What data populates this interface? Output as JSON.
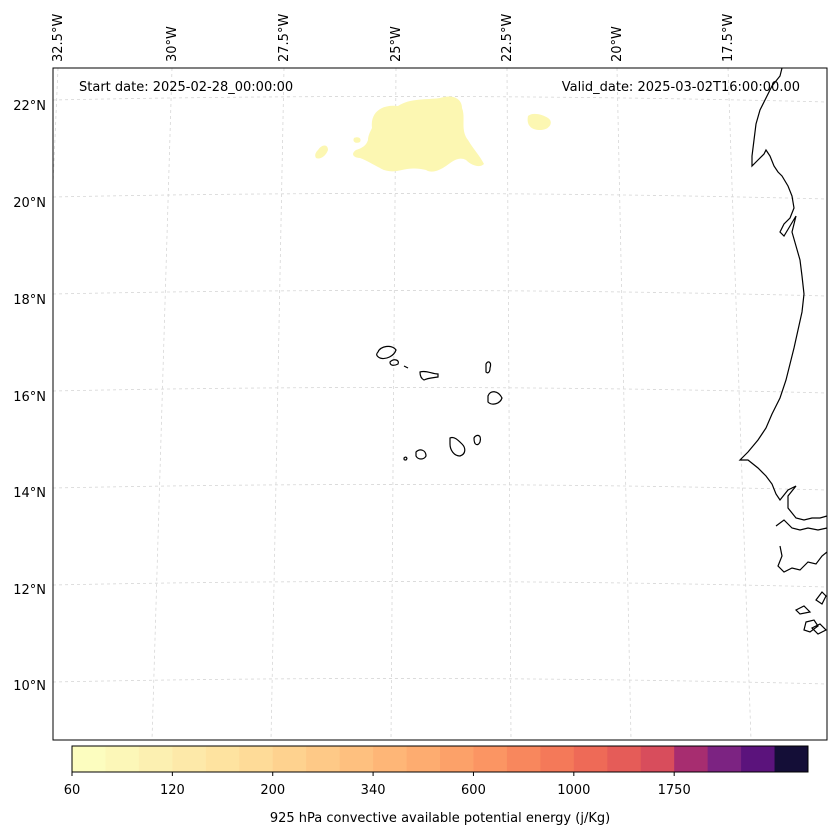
{
  "map": {
    "projection": "lambert-conformal",
    "annotations": {
      "start_date": "Start date: 2025-02-28_00:00:00",
      "valid_date": "Valid_date: 2025-03-02T16:00:00.00"
    },
    "longitude_labels": [
      "32.5°W",
      "30°W",
      "27.5°W",
      "25°W",
      "22.5°W",
      "20°W",
      "17.5°W"
    ],
    "latitude_labels": [
      "22°N",
      "20°N",
      "18°N",
      "16°N",
      "14°N",
      "12°N",
      "10°N"
    ],
    "gridlines": true,
    "coastlines": true,
    "features": [
      "Cape Verde Islands",
      "West African coast (Mauritania, Senegal, Gambia, Guinea-Bissau)"
    ],
    "field": {
      "name": "925 hPa convective available potential energy",
      "visible_region": "low CAPE patch (60–120 j/Kg) near 20.5°N–22°N, 24°W–21°W"
    }
  },
  "colorbar": {
    "label": "925 hPa convective available potential energy (j/Kg)",
    "tick_labels": [
      "60",
      "120",
      "200",
      "340",
      "600",
      "1000",
      "1750"
    ],
    "levels": [
      60,
      80,
      100,
      120,
      140,
      160,
      200,
      240,
      280,
      340,
      400,
      480,
      600,
      700,
      850,
      1000,
      1200,
      1400,
      1750,
      2100,
      2500
    ],
    "colors": [
      "#fcfdbf",
      "#fcf7b8",
      "#fcf0b1",
      "#fde9a9",
      "#fee3a0",
      "#fedb98",
      "#fed28f",
      "#fec987",
      "#fec07f",
      "#feb677",
      "#fdac70",
      "#fca169",
      "#fb9563",
      "#f8875d",
      "#f47959",
      "#ee6a57",
      "#e55c58",
      "#d84d5c",
      "#a72d70",
      "#7c2382",
      "#5b137c",
      "#140e37"
    ]
  },
  "colors": {
    "cape_patch": "#fcf7b2",
    "coastline": "#000000",
    "gridline": "#d9d9d9"
  }
}
